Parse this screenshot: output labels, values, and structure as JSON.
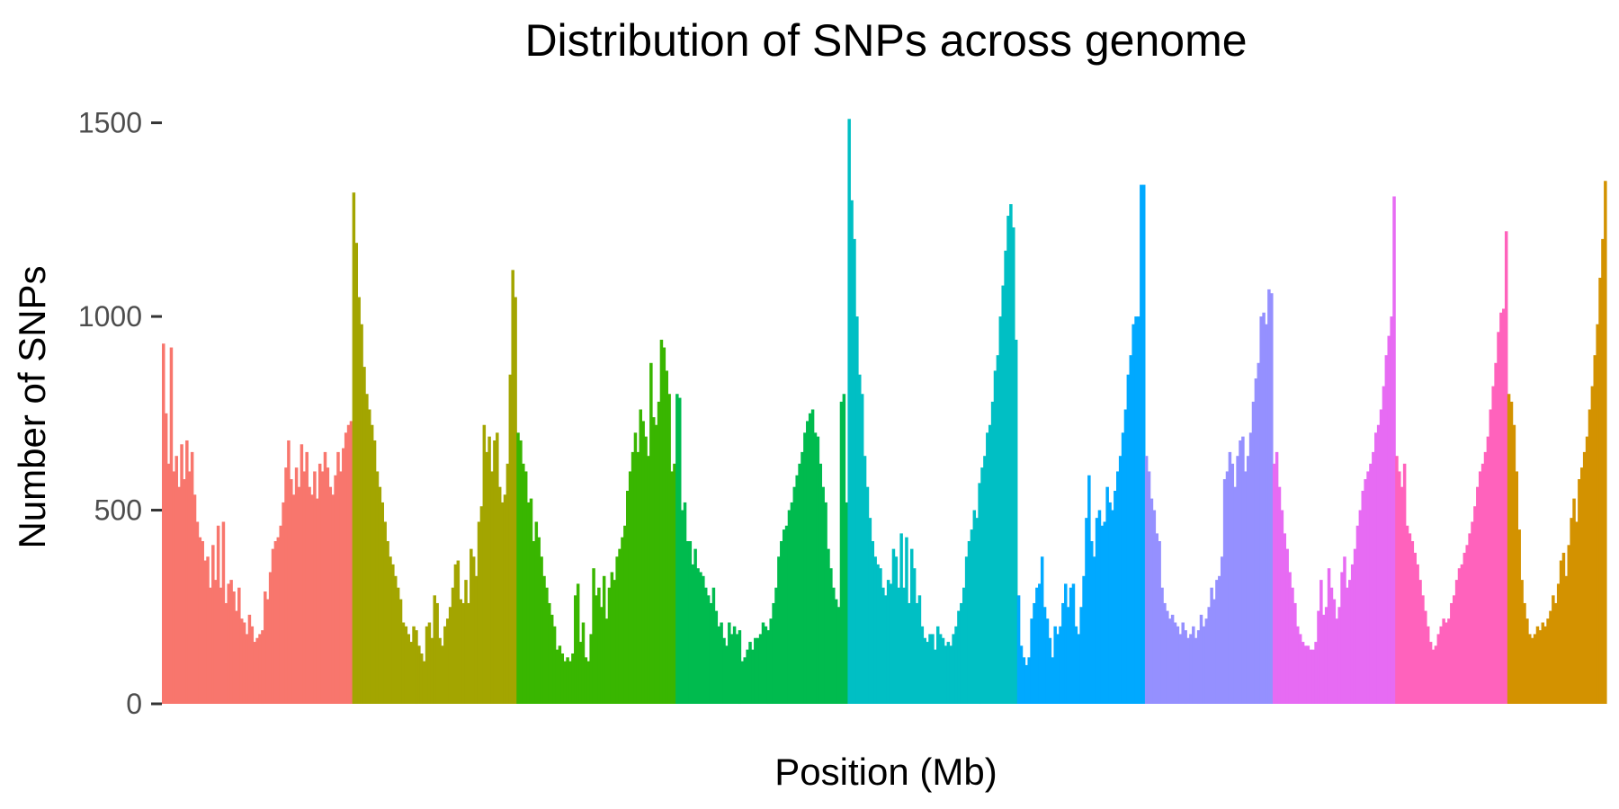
{
  "chart_data": {
    "type": "bar",
    "title": "Distribution of SNPs across genome",
    "xlabel": "Position (Mb)",
    "ylabel": "Number of SNPs",
    "ylim": [
      0,
      1520
    ],
    "yticks": [
      0,
      500,
      1000,
      1500
    ],
    "grid": false,
    "legend": "none",
    "bin_unit": "Mb",
    "series": [
      {
        "color": "#F8766D",
        "values": [
          930,
          750,
          620,
          920,
          600,
          640,
          560,
          670,
          580,
          680,
          600,
          650,
          540,
          470,
          430,
          420,
          370,
          380,
          300,
          410,
          320,
          460,
          300,
          470,
          260,
          310,
          320,
          290,
          240,
          300,
          220,
          210,
          180,
          230,
          200,
          160,
          170,
          180,
          190,
          290,
          270,
          340,
          400,
          420,
          430,
          460,
          520,
          610,
          680,
          580,
          540,
          610,
          560,
          670,
          600,
          650,
          560,
          540,
          600,
          530,
          620,
          600,
          650,
          610,
          560,
          540,
          590,
          650,
          600,
          660,
          700,
          720,
          730
        ]
      },
      {
        "color": "#A3A500",
        "values": [
          1320,
          1190,
          1050,
          980,
          870,
          800,
          760,
          720,
          680,
          600,
          560,
          520,
          470,
          420,
          380,
          360,
          330,
          300,
          270,
          210,
          200,
          180,
          160,
          200,
          190,
          150,
          130,
          110,
          200,
          210,
          170,
          280,
          260,
          170,
          150,
          200,
          220,
          250,
          300,
          360,
          370,
          270,
          260,
          320,
          260,
          400,
          380,
          330,
          470,
          510,
          720,
          650,
          690,
          600,
          680,
          700,
          560,
          520,
          540,
          620,
          850,
          1120,
          1050
        ]
      },
      {
        "color": "#39B600",
        "values": [
          700,
          680,
          620,
          600,
          520,
          530,
          420,
          470,
          430,
          380,
          330,
          300,
          260,
          230,
          200,
          140,
          150,
          130,
          110,
          120,
          110,
          130,
          280,
          310,
          160,
          210,
          120,
          110,
          180,
          350,
          280,
          300,
          250,
          330,
          220,
          300,
          340,
          320,
          380,
          400,
          430,
          460,
          550,
          600,
          650,
          700,
          650,
          760,
          730,
          690,
          640,
          880,
          740,
          720,
          780,
          940,
          920,
          860,
          800,
          600,
          620
        ]
      },
      {
        "color": "#00BB4E",
        "values": [
          800,
          790,
          500,
          520,
          420,
          420,
          360,
          400,
          350,
          340,
          330,
          300,
          280,
          260,
          300,
          240,
          200,
          210,
          170,
          150,
          210,
          180,
          200,
          180,
          190,
          110,
          120,
          140,
          160,
          140,
          170,
          170,
          180,
          210,
          200,
          190,
          220,
          260,
          300,
          380,
          420,
          450,
          460,
          500,
          520,
          560,
          590,
          620,
          650,
          700,
          730,
          750,
          760,
          700,
          690,
          620,
          560,
          520,
          400,
          350,
          300,
          270,
          250,
          780,
          800,
          520
        ]
      },
      {
        "color": "#00BFC4",
        "values": [
          1510,
          1300,
          1200,
          1000,
          850,
          800,
          640,
          560,
          480,
          420,
          380,
          360,
          350,
          300,
          280,
          320,
          310,
          400,
          380,
          300,
          440,
          300,
          430,
          260,
          400,
          350,
          260,
          280,
          200,
          170,
          160,
          180,
          180,
          140,
          200,
          180,
          170,
          150,
          160,
          150,
          180,
          200,
          240,
          260,
          300,
          380,
          420,
          450,
          500,
          480,
          570,
          610,
          640,
          700,
          720,
          780,
          860,
          900,
          1000,
          1080,
          1170,
          1260,
          1290,
          1230,
          940
        ]
      },
      {
        "color": "#00A9FF",
        "values": [
          280,
          150,
          120,
          100,
          120,
          220,
          260,
          300,
          310,
          380,
          250,
          220,
          170,
          120,
          200,
          180,
          200,
          260,
          310,
          250,
          300,
          310,
          200,
          180,
          250,
          330,
          480,
          590,
          420,
          380,
          480,
          500,
          460,
          470,
          560,
          520,
          500,
          550,
          600,
          640,
          700,
          760,
          850,
          900,
          980,
          1000,
          1000,
          1340,
          1340
        ]
      },
      {
        "color": "#9590FF",
        "values": [
          640,
          600,
          530,
          500,
          440,
          420,
          300,
          260,
          240,
          220,
          230,
          210,
          200,
          180,
          210,
          190,
          170,
          180,
          200,
          170,
          190,
          230,
          200,
          220,
          250,
          300,
          270,
          320,
          330,
          380,
          580,
          600,
          650,
          620,
          560,
          640,
          680,
          690,
          600,
          640,
          700,
          780,
          840,
          880,
          1000,
          1010,
          980,
          1070,
          1060
        ]
      },
      {
        "color": "#E76BF3",
        "values": [
          620,
          650,
          560,
          500,
          440,
          400,
          340,
          300,
          260,
          200,
          180,
          160,
          150,
          150,
          140,
          140,
          160,
          240,
          320,
          230,
          250,
          350,
          300,
          270,
          220,
          250,
          340,
          380,
          300,
          320,
          360,
          400,
          460,
          500,
          550,
          580,
          600,
          620,
          650,
          700,
          720,
          760,
          820,
          900,
          950,
          1000,
          1310
        ]
      },
      {
        "color": "#FF62BC",
        "values": [
          640,
          600,
          560,
          620,
          460,
          440,
          420,
          390,
          360,
          320,
          280,
          240,
          200,
          160,
          140,
          150,
          180,
          200,
          220,
          210,
          220,
          260,
          280,
          320,
          350,
          360,
          390,
          410,
          440,
          470,
          510,
          560,
          600,
          620,
          650,
          690,
          760,
          820,
          880,
          960,
          1010,
          1020,
          1220
        ]
      },
      {
        "color": "#D39200",
        "values": [
          800,
          780,
          720,
          600,
          450,
          320,
          260,
          220,
          180,
          170,
          180,
          200,
          190,
          210,
          200,
          220,
          240,
          280,
          260,
          310,
          370,
          390,
          330,
          410,
          480,
          530,
          470,
          580,
          610,
          650,
          690,
          760,
          820,
          900,
          980,
          1100,
          1200,
          1350
        ]
      }
    ]
  }
}
